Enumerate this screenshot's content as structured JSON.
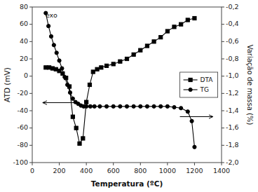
{
  "chart_data": {
    "type": "line",
    "x_label": "Temperatura (ºC)",
    "y_label": "ATD (mV)",
    "y2_label": "Variação de massa (%)",
    "annotations": [
      "exo"
    ],
    "xlim": [
      0,
      1400
    ],
    "xticks": [
      0,
      200,
      400,
      600,
      800,
      1000,
      1200,
      1400
    ],
    "ylim": [
      -100,
      80
    ],
    "yticks": [
      -100,
      -80,
      -60,
      -40,
      -20,
      0,
      20,
      40,
      60,
      80
    ],
    "y2lim": [
      -2.0,
      -0.2
    ],
    "y2ticks": [
      {
        "value": -2.0,
        "label": "-2,0"
      },
      {
        "value": -1.8,
        "label": "-1,8"
      },
      {
        "value": -1.6,
        "label": "-1,6"
      },
      {
        "value": -1.4,
        "label": "-1,4"
      },
      {
        "value": -1.2,
        "label": "-1,2"
      },
      {
        "value": -1.0,
        "label": "-1,0"
      },
      {
        "value": -0.8,
        "label": "-0,8"
      },
      {
        "value": -0.6,
        "label": "-0,6"
      },
      {
        "value": -0.4,
        "label": "-0,4"
      },
      {
        "value": -0.2,
        "label": "-0,2"
      }
    ],
    "grid": false,
    "legend": "right",
    "series": [
      {
        "name": "DTA",
        "color": "#000000",
        "marker": "square",
        "axis": "y",
        "x": [
          100,
          125,
          150,
          175,
          200,
          225,
          250,
          275,
          300,
          325,
          350,
          375,
          400,
          425,
          450,
          480,
          510,
          550,
          600,
          650,
          700,
          750,
          800,
          850,
          900,
          950,
          1000,
          1050,
          1100,
          1150,
          1200
        ],
        "values": [
          10,
          10,
          9,
          8,
          6,
          3,
          -2,
          -12,
          -47,
          -60,
          -78,
          -72,
          -30,
          -10,
          5,
          8,
          10,
          12,
          14,
          17,
          20,
          25,
          30,
          35,
          40,
          45,
          52,
          57,
          60,
          65,
          67
        ]
      },
      {
        "name": "TG",
        "color": "#000000",
        "marker": "circle",
        "axis": "y2",
        "x": [
          100,
          120,
          140,
          160,
          180,
          200,
          220,
          240,
          260,
          280,
          300,
          320,
          340,
          360,
          380,
          400,
          430,
          460,
          500,
          550,
          600,
          650,
          700,
          750,
          800,
          850,
          900,
          950,
          1000,
          1050,
          1100,
          1150,
          1180,
          1200
        ],
        "values": [
          -0.27,
          -0.42,
          -0.54,
          -0.64,
          -0.73,
          -0.82,
          -0.91,
          -1.01,
          -1.1,
          -1.19,
          -1.26,
          -1.3,
          -1.32,
          -1.34,
          -1.35,
          -1.35,
          -1.35,
          -1.35,
          -1.35,
          -1.35,
          -1.35,
          -1.35,
          -1.35,
          -1.35,
          -1.35,
          -1.35,
          -1.35,
          -1.35,
          -1.35,
          -1.36,
          -1.37,
          -1.41,
          -1.52,
          -1.82
        ]
      }
    ]
  }
}
